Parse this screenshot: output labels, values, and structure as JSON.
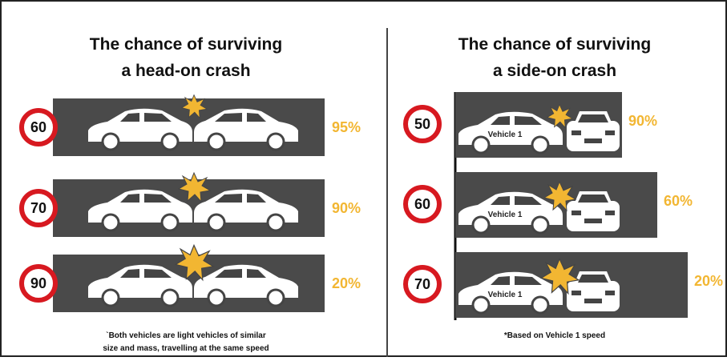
{
  "left": {
    "title": [
      "The chance of surviving",
      "a head-on crash"
    ],
    "rows": [
      {
        "speed": "60",
        "chance": "95%"
      },
      {
        "speed": "70",
        "chance": "90%"
      },
      {
        "speed": "90",
        "chance": "20%"
      }
    ],
    "footnote": [
      "`Both vehicles are light vehicles of similar",
      "size and mass, travelling at the same speed"
    ]
  },
  "right": {
    "title": [
      "The chance of surviving",
      "a side-on crash"
    ],
    "vehicle_label": "Vehicle 1",
    "rows": [
      {
        "speed": "50",
        "chance": "90%"
      },
      {
        "speed": "60",
        "chance": "60%"
      },
      {
        "speed": "70",
        "chance": "20%"
      }
    ],
    "footnote": [
      "*Based on Vehicle 1 speed"
    ]
  }
}
